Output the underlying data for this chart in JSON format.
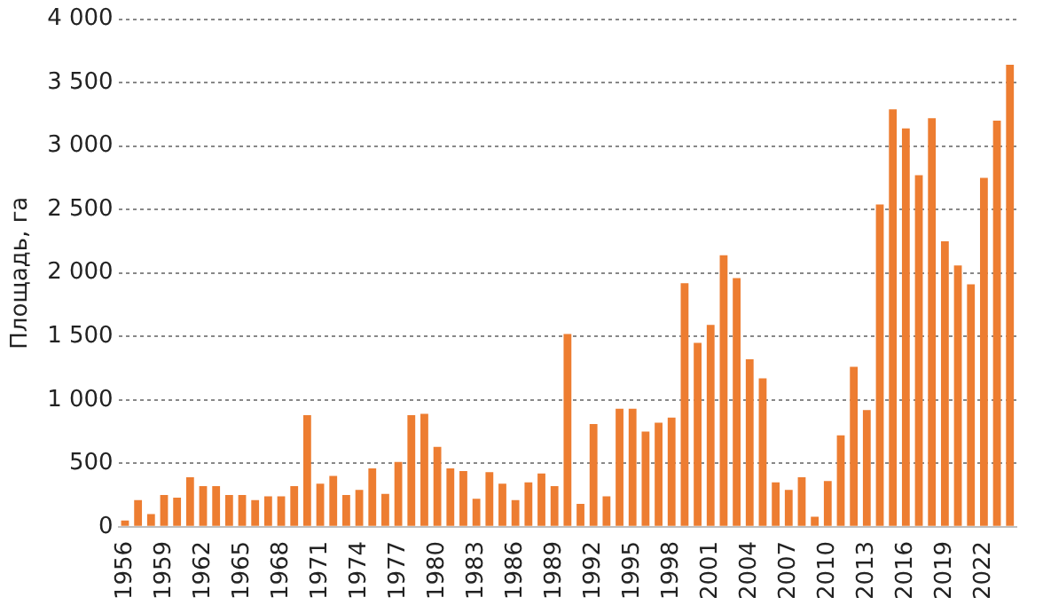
{
  "chart_data": {
    "type": "bar",
    "ylabel": "Площадь, га",
    "color": "#ed7d31",
    "categories": [
      "1956",
      null,
      null,
      "1959",
      null,
      null,
      "1962",
      null,
      null,
      "1965",
      null,
      null,
      "1968",
      null,
      null,
      "1971",
      null,
      null,
      "1974",
      null,
      null,
      "1977",
      null,
      null,
      "1980",
      null,
      null,
      "1983",
      null,
      null,
      "1986",
      null,
      null,
      "1989",
      null,
      null,
      "1992",
      null,
      null,
      "1995",
      null,
      null,
      "1998",
      null,
      null,
      "2001",
      null,
      null,
      "2004",
      null,
      null,
      "2007",
      null,
      null,
      "2010",
      null,
      null,
      "2013",
      null,
      null,
      "2016",
      null,
      null,
      "2019",
      null,
      null,
      "2022",
      null,
      null
    ],
    "values": [
      50,
      210,
      100,
      250,
      230,
      390,
      320,
      320,
      250,
      250,
      210,
      240,
      240,
      320,
      880,
      340,
      400,
      250,
      290,
      460,
      260,
      510,
      880,
      890,
      630,
      460,
      440,
      220,
      430,
      340,
      210,
      350,
      420,
      320,
      1520,
      180,
      810,
      240,
      930,
      930,
      750,
      820,
      860,
      1920,
      1450,
      1590,
      2140,
      1960,
      1320,
      1170,
      350,
      290,
      390,
      80,
      360,
      720,
      1260,
      920,
      2540,
      3290,
      3140,
      2770,
      3220,
      2250,
      2060,
      1910,
      2750,
      3200,
      3640
    ],
    "ylim": [
      0,
      4000
    ],
    "yticks": [
      0,
      500,
      {
        "value": 1000,
        "label": "1 000"
      },
      {
        "value": 1500,
        "label": "1 500"
      },
      {
        "value": 2000,
        "label": "2 000"
      },
      {
        "value": 2500,
        "label": "2 500"
      },
      {
        "value": 3000,
        "label": "3 000"
      },
      {
        "value": 3500,
        "label": "3 500"
      },
      {
        "value": 4000,
        "label": "4 000"
      }
    ],
    "grid": "y",
    "legend": false
  }
}
